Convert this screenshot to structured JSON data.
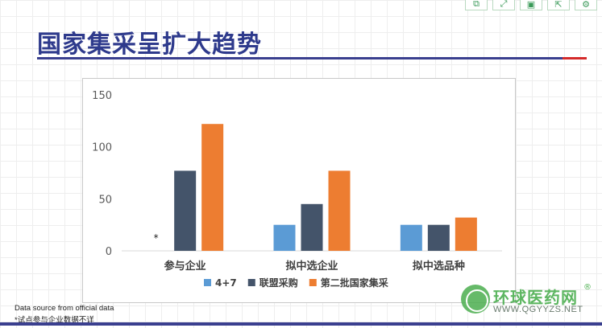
{
  "slide": {
    "title": "国家集采呈扩大趋势"
  },
  "toolbar": {
    "items": [
      {
        "icon": "copy-icon",
        "glyph": "⧉"
      },
      {
        "icon": "expand-icon",
        "glyph": "⤢"
      },
      {
        "icon": "save-icon",
        "glyph": "▣"
      },
      {
        "icon": "share-icon",
        "glyph": "⇱"
      },
      {
        "icon": "settings-icon",
        "glyph": "⚙"
      }
    ]
  },
  "chart_data": {
    "type": "bar",
    "categories": [
      "参与企业",
      "拟中选企业",
      "拟中选品种"
    ],
    "series": [
      {
        "name": "4+7",
        "color": "#5b9bd5",
        "values": [
          null,
          25,
          25
        ]
      },
      {
        "name": "联盟采购",
        "color": "#44546a",
        "values": [
          77,
          45,
          25
        ]
      },
      {
        "name": "第二批国家集采",
        "color": "#ed7d31",
        "values": [
          122,
          77,
          32
        ]
      }
    ],
    "ylim": [
      0,
      150
    ],
    "yticks": [
      0,
      50,
      100,
      150
    ],
    "grid": false,
    "legend": "bottom",
    "annotation": "*"
  },
  "footnotes": {
    "source": "Data source from official data",
    "note": "*试点参与企业数据不详"
  },
  "watermark": {
    "name": "环球医药网",
    "reg": "®",
    "url": "WWW.QGYYZS.NET"
  }
}
